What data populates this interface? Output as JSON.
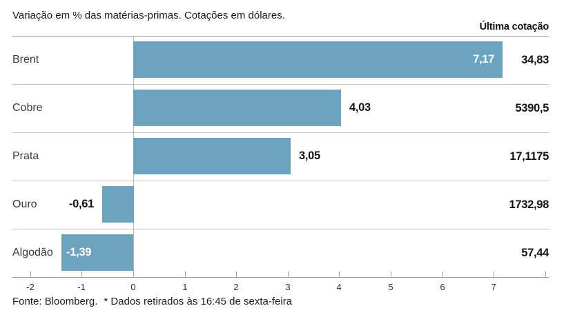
{
  "header": {
    "title": "Variação em % das matérias-primas. Cotações em dólares.",
    "right_column_label": "Última cotação"
  },
  "footer": {
    "source": "Fonte: Bloomberg.",
    "note": "* Dados retirados às 16:45 de sexta-feira"
  },
  "chart_data": {
    "type": "bar",
    "orientation": "horizontal",
    "title": "Variação em % das matérias-primas. Cotações em dólares.",
    "categories": [
      "Brent",
      "Cobre",
      "Prata",
      "Ouro",
      "Algodão"
    ],
    "series": [
      {
        "name": "Variação %",
        "values": [
          7.17,
          4.03,
          3.05,
          -0.61,
          -1.39
        ]
      }
    ],
    "value_labels": [
      "7,17",
      "4,03",
      "3,05",
      "-0,61",
      "-1,39"
    ],
    "value_label_placement": [
      "inside",
      "outside",
      "outside",
      "outside",
      "inside"
    ],
    "last_quotes": [
      "34,83",
      "5390,5",
      "17,1175",
      "1732,98",
      "57,44"
    ],
    "xlim": [
      -2.346,
      8.069
    ],
    "x_tick_values": [
      -2,
      -1,
      0,
      1,
      2,
      3,
      4,
      5,
      6,
      7,
      8
    ],
    "x_tick_labels": [
      "-2",
      "-1",
      "0",
      "1",
      "2",
      "3",
      "4",
      "5",
      "6",
      "7",
      ""
    ],
    "grid": "row-separators",
    "legend": "none",
    "bar_color": "#6CA3BE",
    "separator_color": "#c3c3c3",
    "axis_color": "#9d9d9d"
  }
}
